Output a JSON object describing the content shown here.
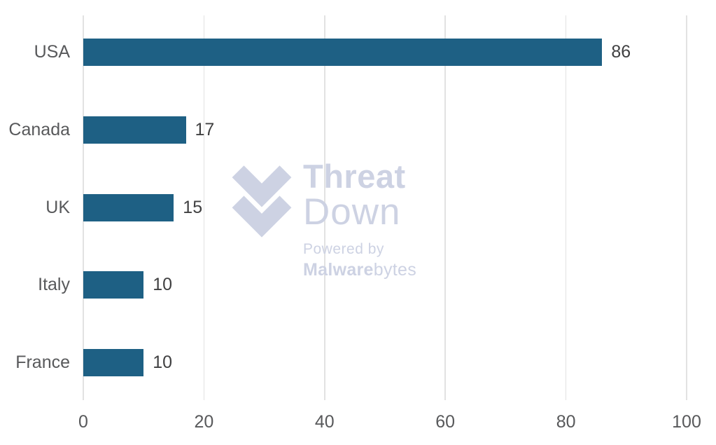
{
  "chart_data": {
    "type": "bar",
    "orientation": "horizontal",
    "title": "",
    "xlabel": "",
    "ylabel": "",
    "categories": [
      "USA",
      "Canada",
      "UK",
      "Italy",
      "France"
    ],
    "values": [
      86,
      17,
      15,
      10,
      10
    ],
    "value_labels": [
      "86",
      "17",
      "15",
      "10",
      "10"
    ],
    "x_ticks": [
      0,
      20,
      40,
      60,
      80,
      100
    ],
    "x_tick_labels": [
      "0",
      "20",
      "40",
      "60",
      "80",
      "100"
    ],
    "xlim": [
      0,
      100
    ],
    "grid": "vertical",
    "legend": "none",
    "bar_color": "#1e6084"
  },
  "watermark": {
    "line1": "Threat",
    "line2": "Down",
    "powered_by": "Powered by",
    "brand_bold": "Malware",
    "brand_rest": "bytes",
    "color": "#cdd2e3"
  },
  "colors": {
    "background": "#ffffff",
    "bar": "#1e6084",
    "category_label": "#58595b",
    "value_label": "#404041",
    "tick_label": "#58595b",
    "gridline": "#e2e2e2"
  }
}
